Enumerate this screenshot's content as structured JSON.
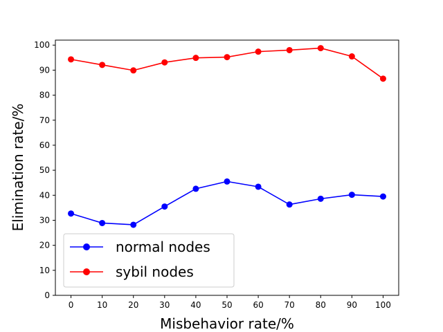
{
  "chart_data": {
    "type": "line",
    "xlabel": "Misbehavior rate/%",
    "ylabel": "Elimination rate/%",
    "x": [
      0,
      10,
      20,
      30,
      40,
      50,
      60,
      70,
      80,
      90,
      100
    ],
    "xticks": [
      0,
      10,
      20,
      30,
      40,
      50,
      60,
      70,
      80,
      90,
      100
    ],
    "yticks": [
      0,
      10,
      20,
      30,
      40,
      50,
      60,
      70,
      80,
      90,
      100
    ],
    "xlim": [
      -5,
      105
    ],
    "ylim": [
      0,
      102
    ],
    "grid": false,
    "legend_position": "lower-left",
    "series": [
      {
        "name": "normal nodes",
        "color": "#0000ff",
        "marker": "circle",
        "values": [
          32.7,
          28.9,
          28.2,
          35.5,
          42.6,
          45.5,
          43.4,
          36.3,
          38.6,
          40.2,
          39.5
        ]
      },
      {
        "name": "sybil nodes",
        "color": "#ff0000",
        "marker": "circle",
        "values": [
          94.3,
          92.1,
          89.9,
          93.1,
          94.9,
          95.2,
          97.4,
          98.0,
          98.8,
          95.5,
          86.6
        ]
      }
    ]
  }
}
